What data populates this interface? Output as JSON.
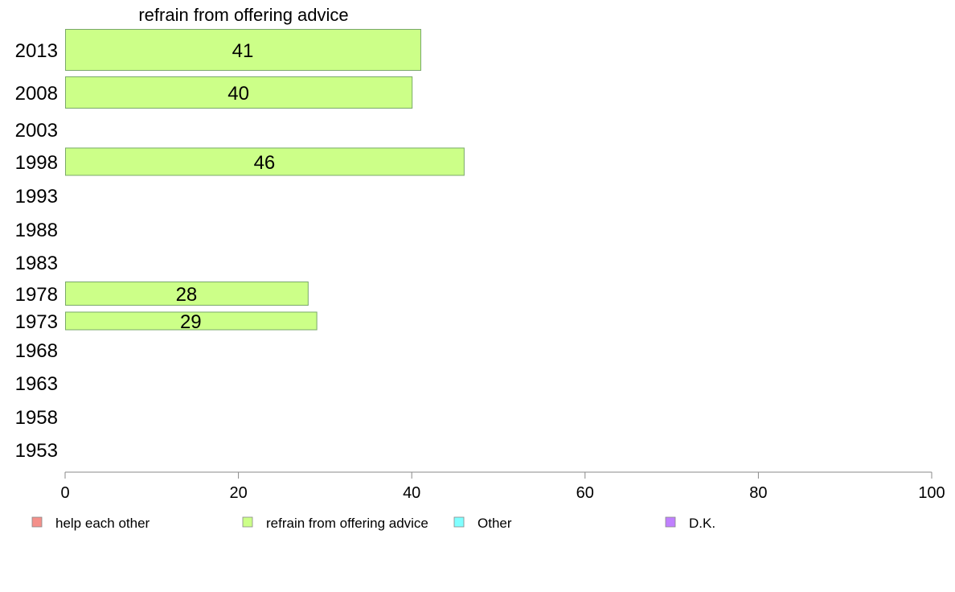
{
  "chart_data": {
    "type": "bar",
    "orientation": "horizontal",
    "title": "refrain from offering advice",
    "xlabel": "",
    "ylabel": "",
    "categories": [
      "2013",
      "2008",
      "2003",
      "1998",
      "1993",
      "1988",
      "1983",
      "1978",
      "1973",
      "1968",
      "1963",
      "1958",
      "1953"
    ],
    "series": [
      {
        "name": "refrain from offering advice",
        "color": "#ccff88",
        "values": [
          41,
          40,
          null,
          46,
          null,
          null,
          null,
          28,
          29,
          null,
          null,
          null,
          null
        ]
      }
    ],
    "xlim": [
      0,
      100
    ],
    "xticks": [
      "0",
      "20",
      "40",
      "60",
      "80",
      "100"
    ],
    "grid": false,
    "legend": {
      "placement": "bottom",
      "entries": [
        {
          "label": "help each other",
          "color": "#f4908a"
        },
        {
          "label": "refrain from offering advice",
          "color": "#ccff88"
        },
        {
          "label": "Other",
          "color": "#80ffff"
        },
        {
          "label": "D.K.",
          "color": "#c080ff"
        }
      ]
    }
  }
}
